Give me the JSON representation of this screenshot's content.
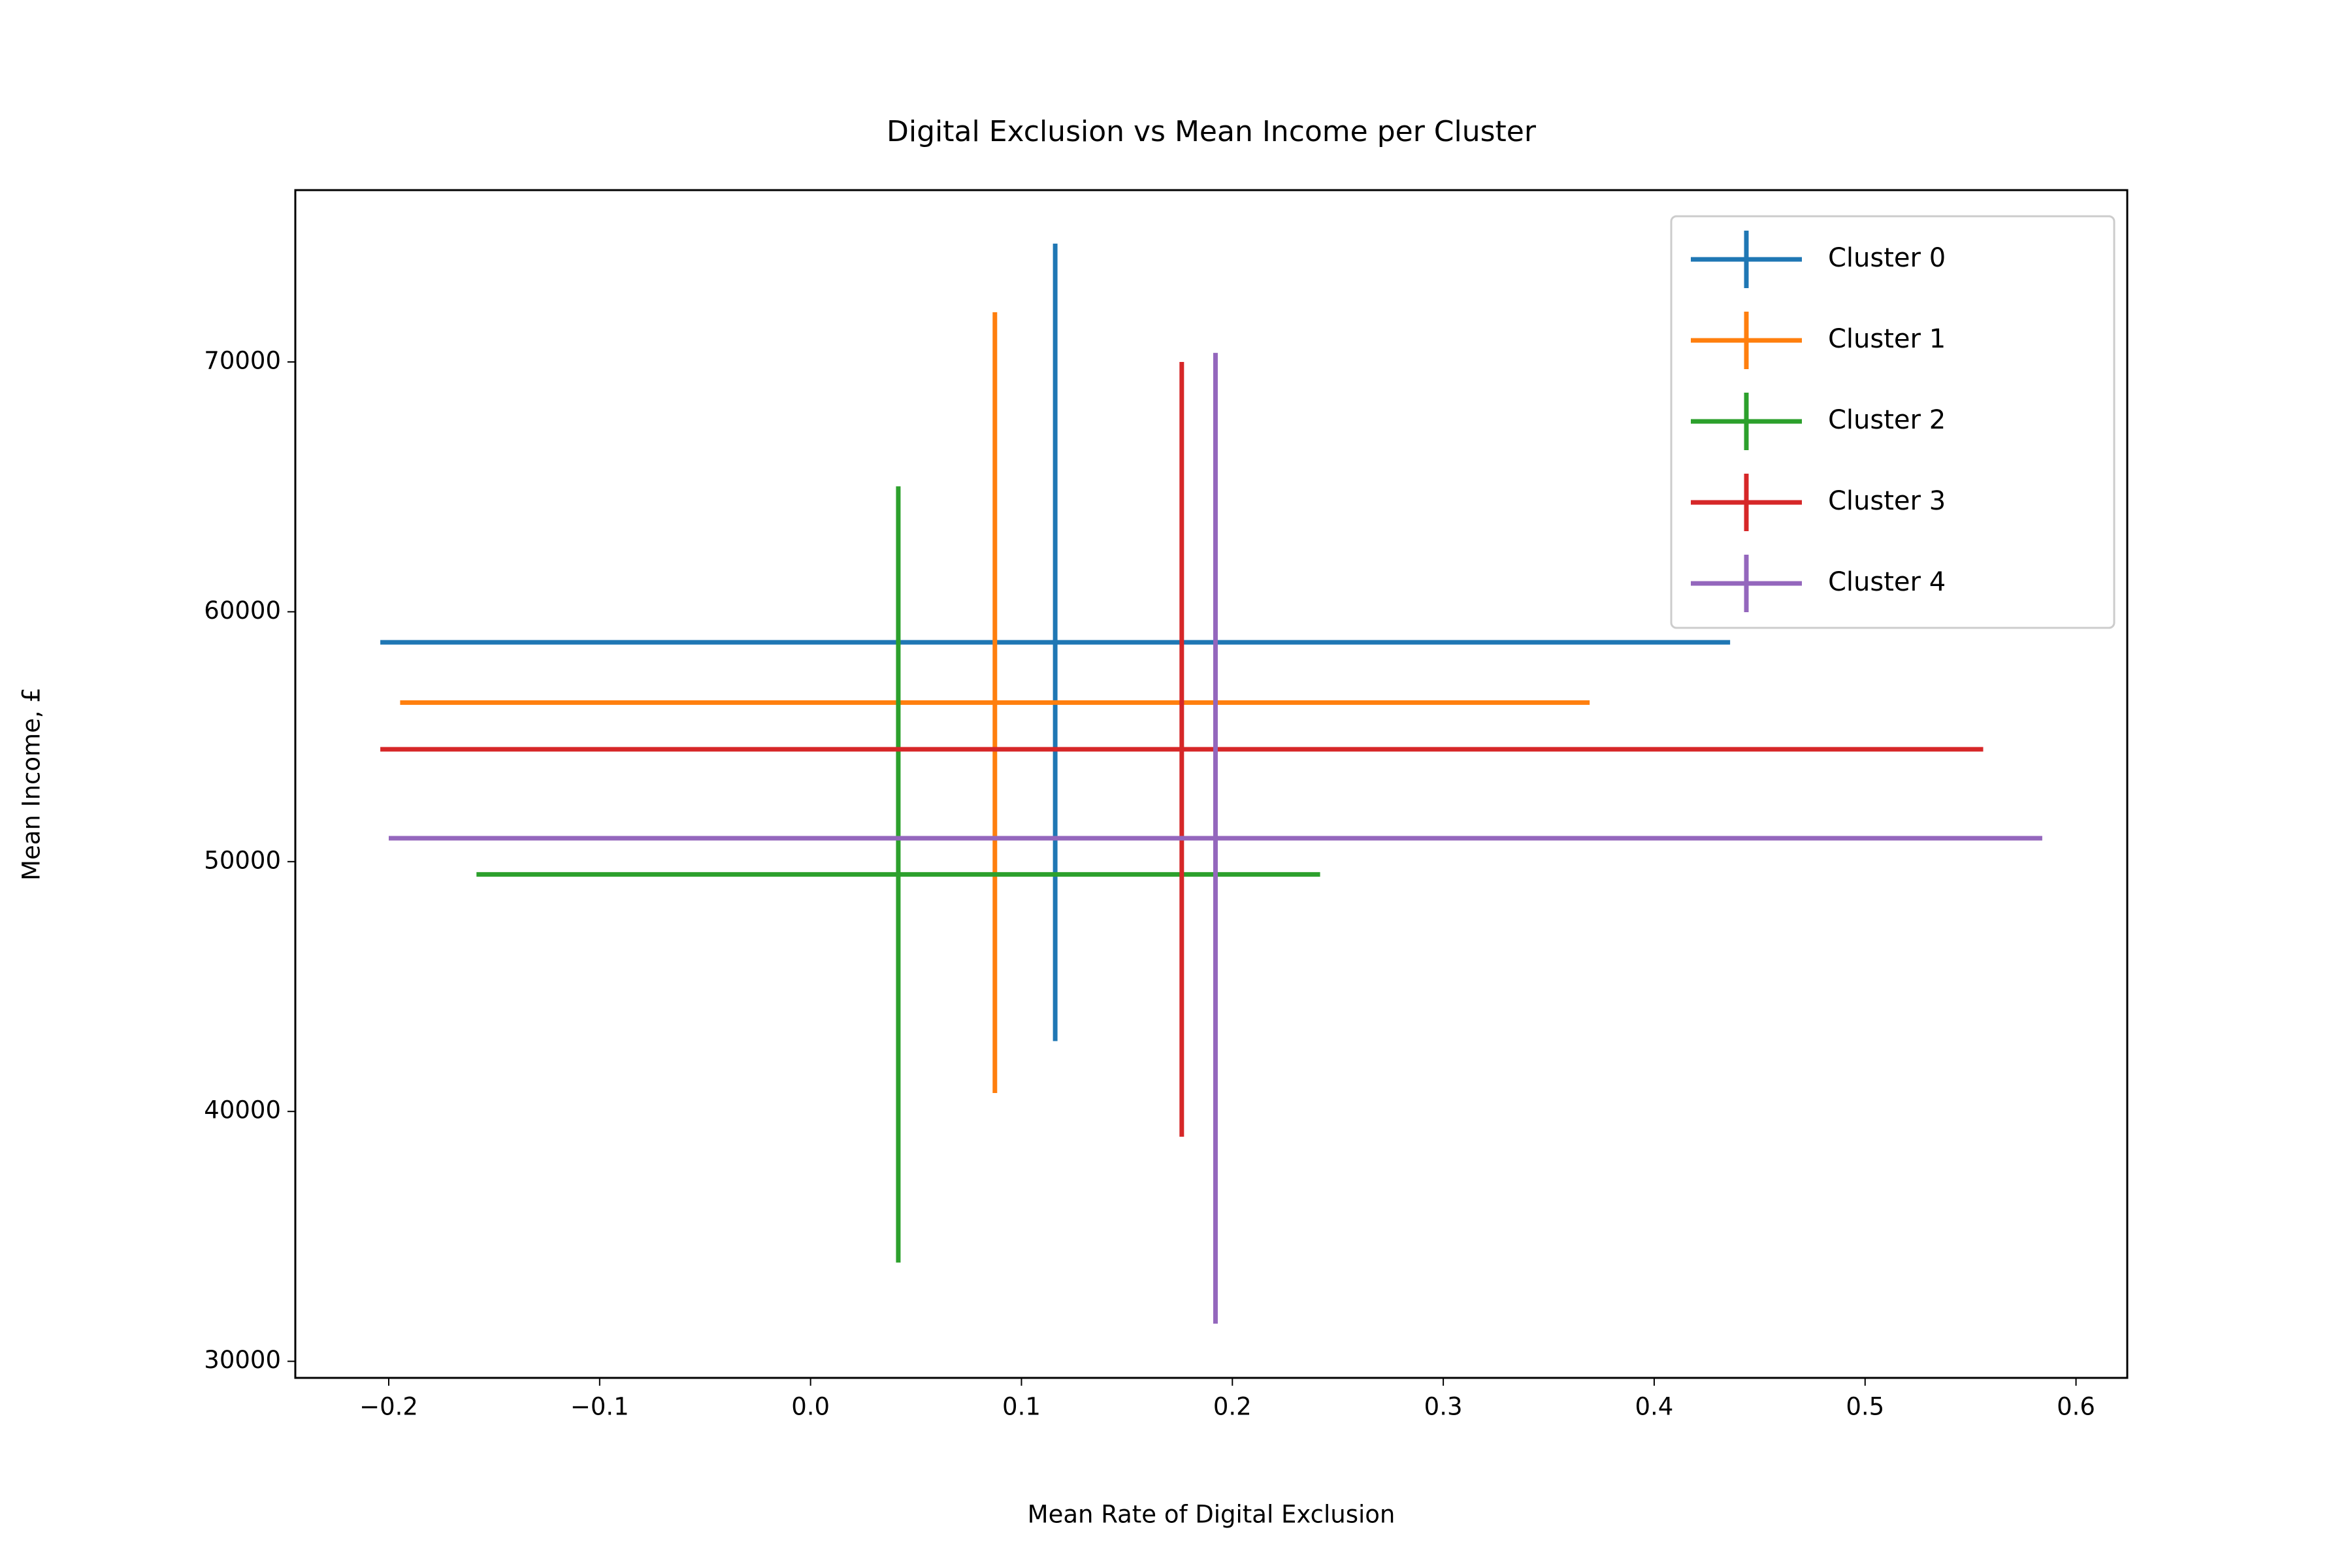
{
  "chart_data": {
    "type": "errorbar",
    "title": "Digital Exclusion vs Mean Income per Cluster",
    "x_label": "Mean Rate of Digital Exclusion",
    "y_label": "Mean Income, £",
    "xlim": [
      -0.2443,
      0.6243
    ],
    "ylim": [
      29336,
      76878
    ],
    "xticks": [
      {
        "value": -0.2,
        "label": "−0.2"
      },
      {
        "value": -0.1,
        "label": "−0.1"
      },
      {
        "value": 0,
        "label": "0.0"
      },
      0.1,
      0.2,
      0.3,
      0.4,
      0.5,
      0.6
    ],
    "yticks": [
      30000,
      40000,
      50000,
      60000,
      70000
    ],
    "legend": "upper right",
    "series": [
      {
        "name": "Cluster 0",
        "color": "#1f77b4",
        "x": 0.116,
        "y": 58778,
        "xerr": 0.32,
        "yerr": 15960
      },
      {
        "name": "Cluster 1",
        "color": "#ff7f0e",
        "x": 0.0874,
        "y": 56365,
        "xerr": 0.282,
        "yerr": 15626
      },
      {
        "name": "Cluster 2",
        "color": "#2ca02c",
        "x": 0.0416,
        "y": 49487,
        "xerr": 0.2,
        "yerr": 15535
      },
      {
        "name": "Cluster 3",
        "color": "#d62728",
        "x": 0.176,
        "y": 54495,
        "xerr": 0.38,
        "yerr": 15505
      },
      {
        "name": "Cluster 4",
        "color": "#9467bd",
        "x": 0.192,
        "y": 50935,
        "xerr": 0.392,
        "yerr": 19427
      }
    ]
  }
}
